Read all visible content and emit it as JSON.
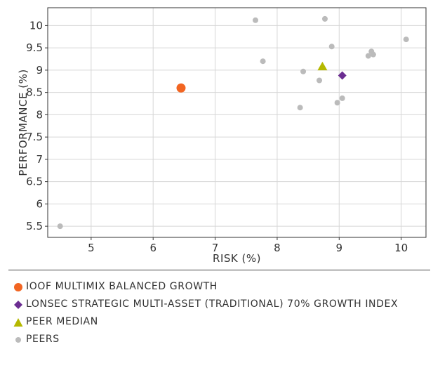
{
  "chart_data": {
    "type": "scatter",
    "title": "",
    "xlabel": "RISK (%)",
    "ylabel": "PERFORMANCE (%)",
    "xlim": [
      4.3,
      10.4
    ],
    "ylim": [
      5.25,
      10.4
    ],
    "xticks": [
      "5",
      "6",
      "7",
      "8",
      "9",
      "10"
    ],
    "yticks": [
      "5.5",
      "6",
      "6.5",
      "7",
      "7.5",
      "8",
      "8.5",
      "9",
      "9.5",
      "10"
    ],
    "grid": true,
    "legend_position": "bottom",
    "series": [
      {
        "name": "IOOF MULTIMIX BALANCED GROWTH",
        "marker": "circle-large",
        "color": "#f26522",
        "points": [
          {
            "x": 6.45,
            "y": 8.6
          }
        ]
      },
      {
        "name": "LONSEC STRATEGIC MULTI-ASSET (TRADITIONAL) 70% GROWTH INDEX",
        "marker": "diamond",
        "color": "#6b2d91",
        "points": [
          {
            "x": 9.05,
            "y": 8.88
          }
        ]
      },
      {
        "name": "PEER MEDIAN",
        "marker": "triangle",
        "color": "#b5b800",
        "points": [
          {
            "x": 8.73,
            "y": 9.08
          }
        ]
      },
      {
        "name": "PEERS",
        "marker": "circle-small",
        "color": "#bbbbbb",
        "points": [
          {
            "x": 4.5,
            "y": 5.5
          },
          {
            "x": 7.65,
            "y": 10.12
          },
          {
            "x": 8.77,
            "y": 10.15
          },
          {
            "x": 7.77,
            "y": 9.2
          },
          {
            "x": 8.88,
            "y": 9.53
          },
          {
            "x": 8.42,
            "y": 8.97
          },
          {
            "x": 8.68,
            "y": 8.77
          },
          {
            "x": 8.37,
            "y": 8.16
          },
          {
            "x": 9.05,
            "y": 8.37
          },
          {
            "x": 8.97,
            "y": 8.27
          },
          {
            "x": 9.47,
            "y": 9.32
          },
          {
            "x": 9.52,
            "y": 9.42
          },
          {
            "x": 9.55,
            "y": 9.35
          },
          {
            "x": 10.08,
            "y": 9.69
          }
        ]
      }
    ]
  },
  "legend": {
    "items": [
      {
        "label": "IOOF MULTIMIX BALANCED GROWTH",
        "marker": "circle-large",
        "color": "#f26522"
      },
      {
        "label": "LONSEC STRATEGIC MULTI-ASSET (TRADITIONAL) 70% GROWTH INDEX",
        "marker": "diamond",
        "color": "#6b2d91"
      },
      {
        "label": "PEER MEDIAN",
        "marker": "triangle",
        "color": "#b5b800"
      },
      {
        "label": "PEERS",
        "marker": "circle-small",
        "color": "#bbbbbb"
      }
    ]
  }
}
